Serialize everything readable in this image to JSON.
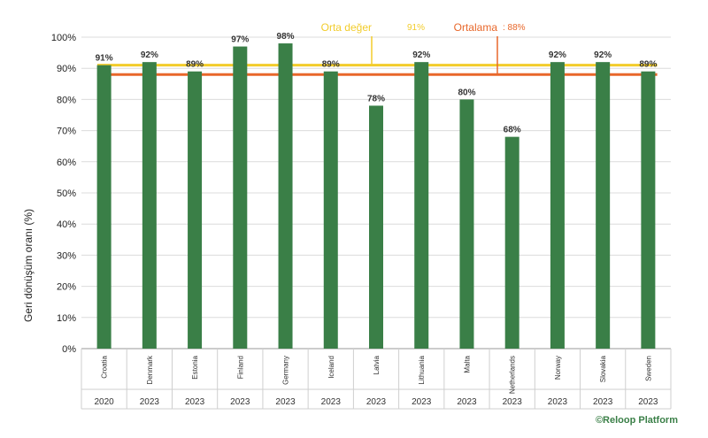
{
  "chart_data": {
    "type": "bar",
    "ylabel": "Geri dönüşüm oranı (%)",
    "ylim": [
      0,
      100
    ],
    "y_ticks": [
      "0%",
      "10%",
      "20%",
      "30%",
      "40%",
      "50%",
      "60%",
      "70%",
      "80%",
      "90%",
      "100%"
    ],
    "grid": true,
    "categories": [
      "Croatia",
      "Denmark",
      "Estonia",
      "Finland",
      "Germany",
      "Iceland",
      "Latvia",
      "Lithuania",
      "Malta",
      "Netherlands",
      "Norway",
      "Slovakia",
      "Sweden"
    ],
    "years": [
      "2020",
      "2023",
      "2023",
      "2023",
      "2023",
      "2023",
      "2023",
      "2023",
      "2023",
      "2023",
      "2023",
      "2023",
      "2023"
    ],
    "values": [
      91,
      92,
      89,
      97,
      98,
      89,
      78,
      92,
      80,
      68,
      92,
      92,
      89
    ],
    "value_labels": [
      "91%",
      "92%",
      "89%",
      "97%",
      "98%",
      "89%",
      "78%",
      "92%",
      "80%",
      "68%",
      "92%",
      "92%",
      "89%"
    ],
    "reference_lines": [
      {
        "label": "Orta değer",
        "value_label": "91%",
        "value": 91,
        "color": "#f2cc2b"
      },
      {
        "label": "Ortalama",
        "value_label": "88%",
        "value": 88,
        "color": "#e8672a"
      }
    ],
    "bar_color": "#3a7f47",
    "credit": "©Reloop Platform"
  }
}
